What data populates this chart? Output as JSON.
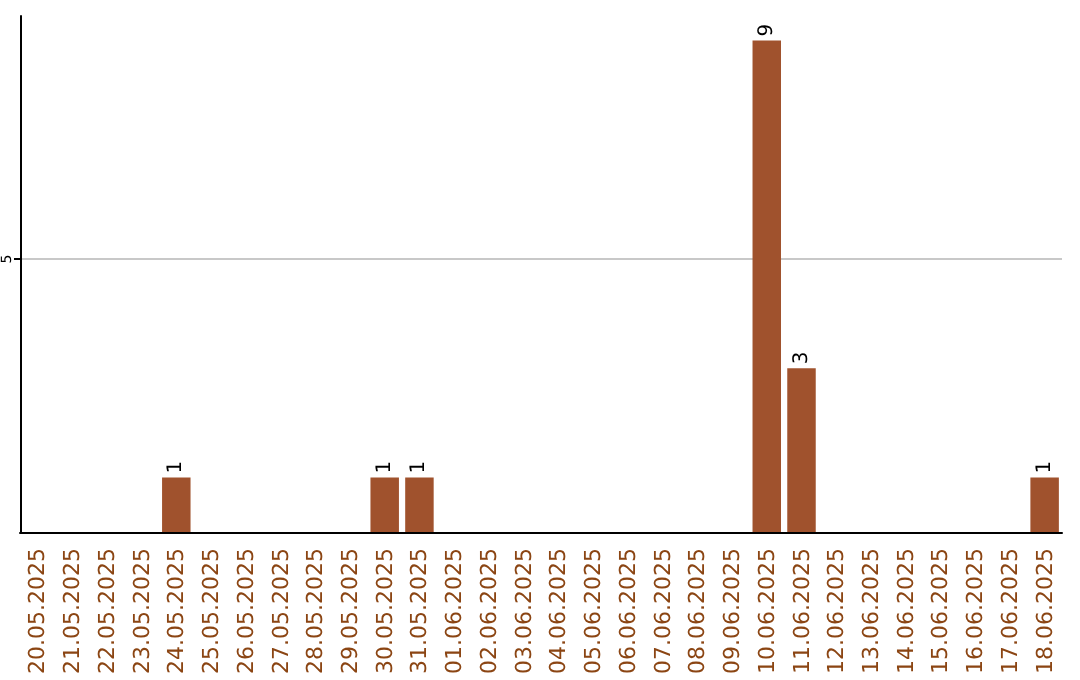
{
  "chart_data": {
    "type": "bar",
    "categories": [
      "20.05.2025",
      "21.05.2025",
      "22.05.2025",
      "23.05.2025",
      "24.05.2025",
      "25.05.2025",
      "26.05.2025",
      "27.05.2025",
      "28.05.2025",
      "29.05.2025",
      "30.05.2025",
      "31.05.2025",
      "01.06.2025",
      "02.06.2025",
      "03.06.2025",
      "04.06.2025",
      "05.06.2025",
      "06.06.2025",
      "07.06.2025",
      "08.06.2025",
      "09.06.2025",
      "10.06.2025",
      "11.06.2025",
      "12.06.2025",
      "13.06.2025",
      "14.06.2025",
      "15.06.2025",
      "16.06.2025",
      "17.06.2025",
      "18.06.2025"
    ],
    "values": [
      0,
      0,
      0,
      0,
      1,
      0,
      0,
      0,
      0,
      0,
      1,
      1,
      0,
      0,
      0,
      0,
      0,
      0,
      0,
      0,
      0,
      9,
      3,
      0,
      0,
      0,
      0,
      0,
      0,
      1
    ],
    "value_labels": [
      null,
      null,
      null,
      null,
      "1",
      null,
      null,
      null,
      null,
      null,
      "1",
      "1",
      null,
      null,
      null,
      null,
      null,
      null,
      null,
      null,
      null,
      "9",
      "3",
      null,
      null,
      null,
      null,
      null,
      null,
      "1"
    ],
    "color": "#a0522d",
    "ylim": [
      0,
      9.45
    ],
    "yticks": [
      5
    ],
    "grid": "y"
  }
}
